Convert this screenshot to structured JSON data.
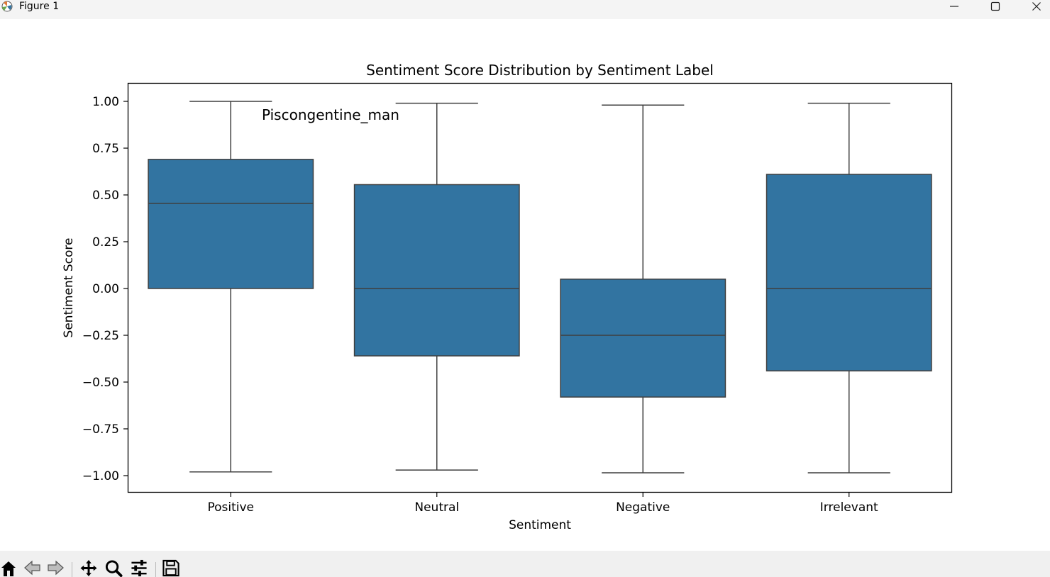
{
  "window": {
    "title": "Figure 1",
    "controls": [
      "minimize-icon",
      "maximize-icon",
      "close-icon"
    ]
  },
  "toolbar": {
    "buttons": [
      "home-icon",
      "back-icon",
      "forward-icon",
      "pan-icon",
      "zoom-icon",
      "configure-subplots-icon",
      "save-icon"
    ]
  },
  "chart_data": {
    "type": "box",
    "title": "Sentiment Score Distribution by Sentiment Label",
    "xlabel": "Sentiment",
    "ylabel": "Sentiment Score",
    "categories": [
      "Positive",
      "Neutral",
      "Negative",
      "Irrelevant"
    ],
    "boxes": [
      {
        "category": "Positive",
        "whislo": -0.98,
        "q1": 0.0,
        "med": 0.455,
        "q3": 0.69,
        "whishi": 1.0
      },
      {
        "category": "Neutral",
        "whislo": -0.97,
        "q1": -0.36,
        "med": 0.0,
        "q3": 0.555,
        "whishi": 0.99
      },
      {
        "category": "Negative",
        "whislo": -0.985,
        "q1": -0.58,
        "med": -0.25,
        "q3": 0.05,
        "whishi": 0.98
      },
      {
        "category": "Irrelevant",
        "whislo": -0.985,
        "q1": -0.44,
        "med": 0.0,
        "q3": 0.61,
        "whishi": 0.99
      }
    ],
    "yticks": [
      1.0,
      0.75,
      0.5,
      0.25,
      0.0,
      -0.25,
      -0.5,
      -0.75,
      -1.0
    ],
    "ytick_labels": [
      "1.00",
      "0.75",
      "0.50",
      "0.25",
      "0.00",
      "−0.25",
      "−0.50",
      "−0.75",
      "−1.00"
    ],
    "ylim": [
      -1.09,
      1.09
    ],
    "grid": false,
    "annotation": "Piscongentine_man",
    "colors": {
      "box_fill": "#3274a1",
      "lines": "#3f3f3f",
      "axes": "#000000"
    }
  }
}
